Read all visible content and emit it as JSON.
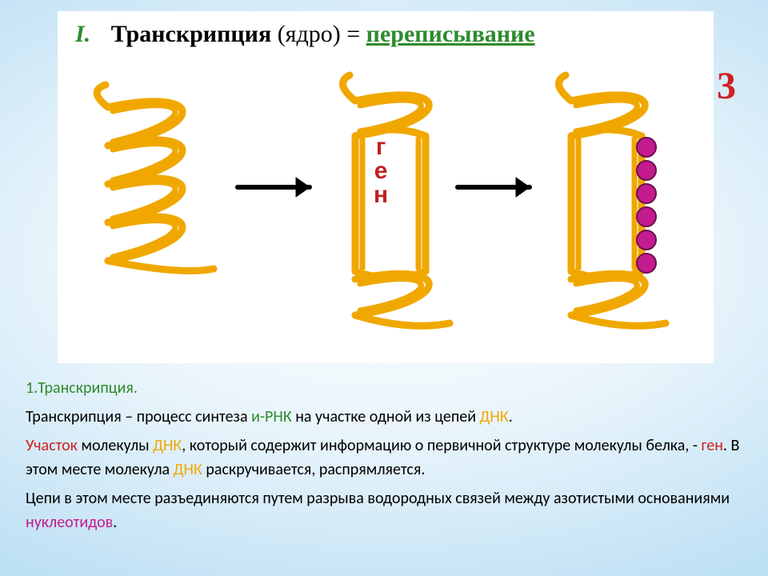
{
  "slide_number": "3",
  "colors": {
    "green": "#2e8b2e",
    "black": "#000000",
    "red": "#d22020",
    "orange": "#f2a900",
    "magenta": "#c41b8e",
    "dna_stroke": "#f0a800",
    "bead_fill": "#c41b8e",
    "bead_stroke": "#6d1050",
    "arrow": "#000000",
    "slide_num": "#d22020",
    "gen_label": "#c02020"
  },
  "title": {
    "roman": "I.",
    "main": "Транскрипция",
    "paren": "(ядро)",
    "eq": "=",
    "under": "переписывание"
  },
  "gen_label": [
    "г",
    "е",
    "н"
  ],
  "diagram": {
    "dna_stroke_width": 9,
    "bead_count": 6,
    "bead_radius": 12
  },
  "text": {
    "heading": "1.Транскрипция.",
    "p1_a": "Транскрипция – процесс синтеза ",
    "p1_b": "и-РНК",
    "p1_c": " на участке одной из цепей ",
    "p1_d": "ДНК",
    "p1_e": ".",
    "p2_a": "Участок",
    "p2_b": " молекулы ",
    "p2_c": "ДНК",
    "p2_d": ", который содержит информацию о первичной структуре молекулы белка, - ",
    "p2_e": "ген",
    "p2_f": ". В этом месте молекула ",
    "p2_g": "ДНК",
    "p2_h": " раскручивается, распрямляется.",
    "p3_a": "Цепи в этом месте разъединяются путем разрыва водородных связей между азотистыми основаниями ",
    "p3_b": "нуклеотидов",
    "p3_c": "."
  }
}
